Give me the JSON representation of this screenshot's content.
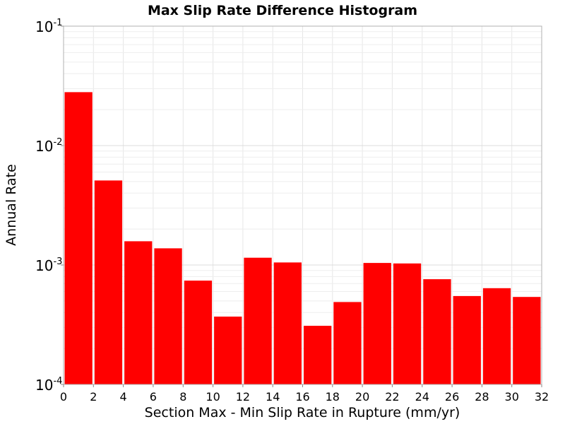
{
  "chart_data": {
    "type": "bar",
    "title": "Max Slip Rate Difference Histogram",
    "xlabel": "Section Max - Min Slip Rate in Rupture (mm/yr)",
    "ylabel": "Annual Rate",
    "xlim": [
      0,
      32
    ],
    "ylim": [
      0.0001,
      0.1
    ],
    "yscale": "log",
    "grid": true,
    "bar_color": "#ff0000",
    "bin_width": 2,
    "x_ticks": [
      "0",
      "2",
      "4",
      "6",
      "8",
      "10",
      "12",
      "14",
      "16",
      "18",
      "20",
      "22",
      "24",
      "26",
      "28",
      "30",
      "32"
    ],
    "y_ticks": [
      {
        "base": "10",
        "exp": "-1"
      },
      {
        "base": "10",
        "exp": "-2"
      },
      {
        "base": "10",
        "exp": "-3"
      },
      {
        "base": "10",
        "exp": "-4"
      }
    ],
    "x": [
      1,
      3,
      5,
      7,
      9,
      11,
      13,
      15,
      17,
      19,
      21,
      23,
      25,
      27,
      29,
      31
    ],
    "values": [
      0.028,
      0.0051,
      0.00158,
      0.00138,
      0.00074,
      0.00037,
      0.00115,
      0.00105,
      0.00031,
      0.00049,
      0.00104,
      0.00103,
      0.00076,
      0.00055,
      0.00064,
      0.00054
    ]
  }
}
